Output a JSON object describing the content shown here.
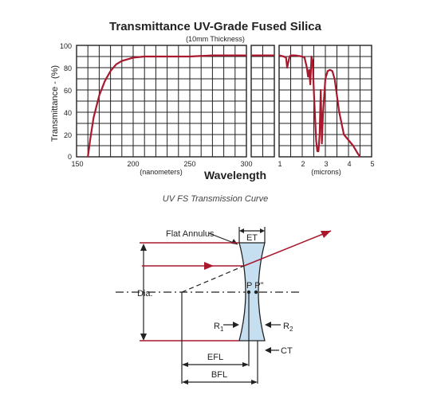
{
  "chart_data": {
    "type": "line",
    "title": "Transmittance UV-Grade Fused Silica",
    "subtitle": "(10mm Thickness)",
    "ylabel": "Transmittance - (%)",
    "xlabel": "Wavelength",
    "ylim": [
      0,
      100
    ],
    "yticks": [
      "100",
      "80",
      "60",
      "40",
      "20",
      "0"
    ],
    "grid": true,
    "panels": [
      {
        "xlim": [
          150,
          300
        ],
        "xticks": [
          "150",
          "200",
          "250",
          "300"
        ],
        "unit": "(nanometers)",
        "series": [
          {
            "x": [
              160,
              162,
              165,
              170,
              175,
              180,
              185,
              190,
              200,
              210,
              230,
              250,
              270,
              300
            ],
            "y": [
              0,
              15,
              35,
              55,
              68,
              77,
              83,
              86,
              89,
              90,
              90,
              90,
              91,
              91
            ]
          }
        ]
      },
      {
        "xlim": [
          300,
          1000
        ],
        "xticks": [],
        "unit": "",
        "series": [
          {
            "x": [
              300,
              1000
            ],
            "y": [
              91,
              91
            ]
          }
        ]
      },
      {
        "xlim": [
          1,
          5
        ],
        "xticks": [
          "1",
          "2",
          "3",
          "4",
          "5"
        ],
        "unit": "(microns)",
        "series": [
          {
            "x": [
              1.0,
              1.2,
              1.3,
              1.35,
              1.45,
              1.5,
              1.7,
              2.0,
              2.1,
              2.2,
              2.25,
              2.3,
              2.35,
              2.4,
              2.45,
              2.5,
              2.6,
              2.65,
              2.7,
              2.75,
              2.8,
              2.85,
              2.9,
              3.0,
              3.1,
              3.2,
              3.3,
              3.4,
              3.5,
              3.6,
              3.7,
              3.8,
              4.0,
              4.2,
              4.4,
              4.5
            ],
            "y": [
              91,
              90,
              89,
              80,
              90,
              91,
              91,
              90,
              89,
              80,
              72,
              78,
              65,
              90,
              86,
              60,
              15,
              5,
              5,
              20,
              60,
              12,
              40,
              70,
              77,
              78,
              77,
              70,
              55,
              40,
              30,
              20,
              15,
              10,
              3,
              0
            ]
          }
        ]
      }
    ]
  },
  "caption": "UV FS Transmission Curve",
  "diagram": {
    "labels": {
      "flat_annulus": "Flat Annulus",
      "et": "ET",
      "dia": "Dia.",
      "pp": "P P\"",
      "r1": "R",
      "r1_sub": "1",
      "r2": "R",
      "r2_sub": "2",
      "ct": "CT",
      "efl": "EFL",
      "bfl": "BFL"
    },
    "colors": {
      "lens_fill": "#c5dff0",
      "ray": "#a8192e",
      "line": "#222222"
    }
  }
}
